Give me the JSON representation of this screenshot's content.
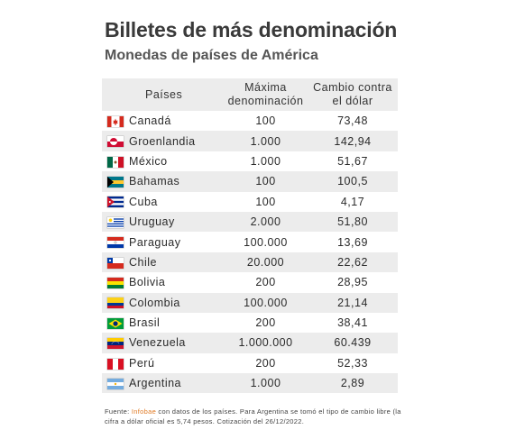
{
  "title": "Billetes de más denominación",
  "subtitle": "Monedas de países de América",
  "table": {
    "headers": [
      "Países",
      "Máxima\ndenominación",
      "Cambio contra\nel dólar"
    ],
    "rows": [
      {
        "country": "Canadá",
        "flag": "canada-flag-icon",
        "max": "100",
        "rate": "73,48"
      },
      {
        "country": "Groenlandia",
        "flag": "greenland-flag-icon",
        "max": "1.000",
        "rate": "142,94"
      },
      {
        "country": "México",
        "flag": "mexico-flag-icon",
        "max": "1.000",
        "rate": "51,67"
      },
      {
        "country": "Bahamas",
        "flag": "bahamas-flag-icon",
        "max": "100",
        "rate": "100,5"
      },
      {
        "country": "Cuba",
        "flag": "cuba-flag-icon",
        "max": "100",
        "rate": "4,17"
      },
      {
        "country": "Uruguay",
        "flag": "uruguay-flag-icon",
        "max": "2.000",
        "rate": "51,80"
      },
      {
        "country": "Paraguay",
        "flag": "paraguay-flag-icon",
        "max": "100.000",
        "rate": "13,69"
      },
      {
        "country": "Chile",
        "flag": "chile-flag-icon",
        "max": "20.000",
        "rate": "22,62"
      },
      {
        "country": "Bolivia",
        "flag": "bolivia-flag-icon",
        "max": "200",
        "rate": "28,95"
      },
      {
        "country": "Colombia",
        "flag": "colombia-flag-icon",
        "max": "100.000",
        "rate": "21,14"
      },
      {
        "country": "Brasil",
        "flag": "brazil-flag-icon",
        "max": "200",
        "rate": "38,41"
      },
      {
        "country": "Venezuela",
        "flag": "venezuela-flag-icon",
        "max": "1.000.000",
        "rate": "60.439"
      },
      {
        "country": "Perú",
        "flag": "peru-flag-icon",
        "max": "200",
        "rate": "52,33"
      },
      {
        "country": "Argentina",
        "flag": "argentina-flag-icon",
        "max": "1.000",
        "rate": "2,89"
      }
    ]
  },
  "footer": {
    "prefix": "Fuente: ",
    "source": "Infobae",
    "text": " con datos de los países. Para Argentina se tomó el tipo de cambio libre (la cifra a dólar oficial es 5,74 pesos. Cotización del 26/12/2022."
  },
  "colors": {
    "header_bg": "#ececec",
    "stripe_bg": "#ececec",
    "source_accent": "#e07b26"
  }
}
